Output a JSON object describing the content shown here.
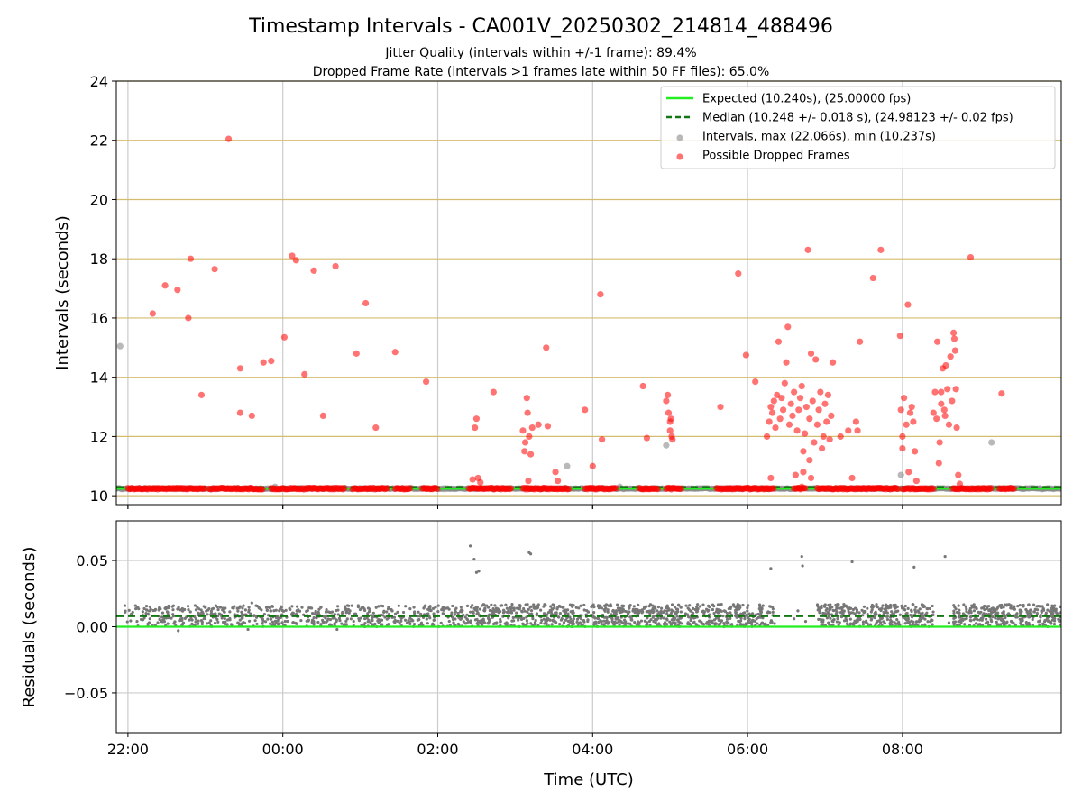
{
  "chart_data": [
    {
      "type": "scatter",
      "title": "Timestamp Intervals - CA001V_20250302_214814_488496",
      "subtitles": [
        "Jitter Quality (intervals within +/-1 frame): 89.4%",
        "Dropped Frame Rate (intervals >1 frames late within 50 FF files): 65.0%"
      ],
      "xlabel": "",
      "ylabel": "Intervals (seconds)",
      "x_unit": "hours relative to 00:00 UTC",
      "xlim": [
        -2.15,
        10.05
      ],
      "ylim": [
        9.7,
        24
      ],
      "x_ticks": [
        -2,
        0,
        2,
        4,
        6,
        8
      ],
      "y_ticks": [
        10,
        12,
        14,
        16,
        18,
        20,
        22,
        24
      ],
      "y_tick_labels": [
        "10",
        "12",
        "14",
        "16",
        "18",
        "20",
        "22",
        "24"
      ],
      "grid": "both",
      "legend_position": "top-right",
      "colors": {
        "expected": "#22ee22",
        "median": "#117711",
        "intervals": "#808080",
        "dropped": "#ff0000",
        "hgrid": "#d4bc6e",
        "vgrid": "#cccccc"
      },
      "series": [
        {
          "name": "Expected (10.240s), (25.00000 fps)",
          "kind": "hline",
          "y": 10.24,
          "style": "solid"
        },
        {
          "name": "Median (10.248 +/- 0.018 s), (24.98123 +/- 0.02 fps)",
          "kind": "hline",
          "y": 10.248,
          "style": "dashed"
        },
        {
          "name": "Intervals, max (22.066s), min (10.237s)",
          "kind": "scatter",
          "baseline_ranges": [
            [
              -2.25,
              10.05
            ]
          ],
          "baseline_y": 10.24,
          "points": [
            {
              "x": -2.1,
              "y": 15.05
            },
            {
              "x": -0.1,
              "y": 10.3
            },
            {
              "x": 3.67,
              "y": 11.0
            },
            {
              "x": 4.35,
              "y": 10.3
            },
            {
              "x": 4.95,
              "y": 11.7
            },
            {
              "x": 7.98,
              "y": 10.7
            },
            {
              "x": 9.15,
              "y": 11.8
            }
          ]
        },
        {
          "name": "Possible Dropped Frames",
          "kind": "scatter",
          "baseline_ranges": [
            [
              -2.0,
              -1.0
            ],
            [
              -0.95,
              -0.25
            ],
            [
              -0.15,
              0.8
            ],
            [
              0.9,
              1.35
            ],
            [
              1.45,
              1.65
            ],
            [
              1.8,
              2.0
            ],
            [
              2.4,
              2.95
            ],
            [
              3.1,
              3.7
            ],
            [
              3.9,
              4.3
            ],
            [
              4.6,
              4.85
            ],
            [
              4.95,
              5.15
            ],
            [
              5.6,
              6.35
            ],
            [
              6.6,
              6.75
            ],
            [
              6.9,
              7.95
            ],
            [
              8.0,
              8.4
            ],
            [
              8.65,
              9.15
            ],
            [
              9.25,
              9.45
            ]
          ],
          "baseline_y": 10.24,
          "points": [
            {
              "x": -1.68,
              "y": 16.15
            },
            {
              "x": -1.52,
              "y": 17.1
            },
            {
              "x": -1.36,
              "y": 16.95
            },
            {
              "x": -1.22,
              "y": 16.0
            },
            {
              "x": -1.19,
              "y": 18.0
            },
            {
              "x": -1.05,
              "y": 13.4
            },
            {
              "x": -0.88,
              "y": 17.65
            },
            {
              "x": -0.7,
              "y": 22.05
            },
            {
              "x": -0.55,
              "y": 14.3
            },
            {
              "x": -0.55,
              "y": 12.8
            },
            {
              "x": -0.4,
              "y": 12.7
            },
            {
              "x": -0.25,
              "y": 14.5
            },
            {
              "x": -0.15,
              "y": 14.55
            },
            {
              "x": 0.02,
              "y": 15.35
            },
            {
              "x": 0.12,
              "y": 18.1
            },
            {
              "x": 0.17,
              "y": 17.95
            },
            {
              "x": 0.28,
              "y": 14.1
            },
            {
              "x": 0.4,
              "y": 17.6
            },
            {
              "x": 0.52,
              "y": 12.7
            },
            {
              "x": 0.68,
              "y": 17.75
            },
            {
              "x": 0.95,
              "y": 14.8
            },
            {
              "x": 1.07,
              "y": 16.5
            },
            {
              "x": 1.2,
              "y": 12.3
            },
            {
              "x": 1.45,
              "y": 14.85
            },
            {
              "x": 1.85,
              "y": 13.85
            },
            {
              "x": 2.48,
              "y": 12.3
            },
            {
              "x": 2.5,
              "y": 12.6
            },
            {
              "x": 2.45,
              "y": 10.55
            },
            {
              "x": 2.52,
              "y": 10.6
            },
            {
              "x": 2.55,
              "y": 10.45
            },
            {
              "x": 2.72,
              "y": 13.5
            },
            {
              "x": 3.1,
              "y": 12.2
            },
            {
              "x": 3.12,
              "y": 11.5
            },
            {
              "x": 3.13,
              "y": 11.8
            },
            {
              "x": 3.15,
              "y": 13.3
            },
            {
              "x": 3.16,
              "y": 12.8
            },
            {
              "x": 3.18,
              "y": 12.0
            },
            {
              "x": 3.2,
              "y": 11.4
            },
            {
              "x": 3.22,
              "y": 12.3
            },
            {
              "x": 3.17,
              "y": 10.5
            },
            {
              "x": 3.3,
              "y": 12.4
            },
            {
              "x": 3.4,
              "y": 15.0
            },
            {
              "x": 3.42,
              "y": 12.35
            },
            {
              "x": 3.52,
              "y": 10.8
            },
            {
              "x": 3.55,
              "y": 10.5
            },
            {
              "x": 3.9,
              "y": 12.9
            },
            {
              "x": 4.0,
              "y": 11.0
            },
            {
              "x": 4.1,
              "y": 16.8
            },
            {
              "x": 4.12,
              "y": 11.9
            },
            {
              "x": 4.65,
              "y": 13.7
            },
            {
              "x": 4.7,
              "y": 11.95
            },
            {
              "x": 4.95,
              "y": 13.2
            },
            {
              "x": 4.97,
              "y": 13.4
            },
            {
              "x": 4.98,
              "y": 12.8
            },
            {
              "x": 5.0,
              "y": 12.5
            },
            {
              "x": 5.0,
              "y": 12.2
            },
            {
              "x": 5.02,
              "y": 12.0
            },
            {
              "x": 5.03,
              "y": 11.9
            },
            {
              "x": 5.01,
              "y": 12.6
            },
            {
              "x": 5.65,
              "y": 13.0
            },
            {
              "x": 5.88,
              "y": 17.5
            },
            {
              "x": 5.98,
              "y": 14.75
            },
            {
              "x": 6.1,
              "y": 13.85
            },
            {
              "x": 6.25,
              "y": 12.0
            },
            {
              "x": 6.28,
              "y": 12.5
            },
            {
              "x": 6.3,
              "y": 13.0
            },
            {
              "x": 6.32,
              "y": 12.8
            },
            {
              "x": 6.34,
              "y": 13.2
            },
            {
              "x": 6.36,
              "y": 12.3
            },
            {
              "x": 6.38,
              "y": 13.4
            },
            {
              "x": 6.4,
              "y": 15.2
            },
            {
              "x": 6.42,
              "y": 12.6
            },
            {
              "x": 6.44,
              "y": 13.3
            },
            {
              "x": 6.46,
              "y": 12.9
            },
            {
              "x": 6.48,
              "y": 13.8
            },
            {
              "x": 6.5,
              "y": 14.5
            },
            {
              "x": 6.52,
              "y": 15.7
            },
            {
              "x": 6.54,
              "y": 12.4
            },
            {
              "x": 6.56,
              "y": 13.1
            },
            {
              "x": 6.58,
              "y": 12.7
            },
            {
              "x": 6.6,
              "y": 13.5
            },
            {
              "x": 6.3,
              "y": 10.6
            },
            {
              "x": 6.62,
              "y": 10.7
            },
            {
              "x": 6.64,
              "y": 12.2
            },
            {
              "x": 6.66,
              "y": 12.9
            },
            {
              "x": 6.68,
              "y": 13.3
            },
            {
              "x": 6.7,
              "y": 13.7
            },
            {
              "x": 6.72,
              "y": 11.5
            },
            {
              "x": 6.74,
              "y": 12.1
            },
            {
              "x": 6.76,
              "y": 13.0
            },
            {
              "x": 6.78,
              "y": 18.3
            },
            {
              "x": 6.8,
              "y": 12.6
            },
            {
              "x": 6.82,
              "y": 14.8
            },
            {
              "x": 6.84,
              "y": 13.2
            },
            {
              "x": 6.86,
              "y": 11.8
            },
            {
              "x": 6.88,
              "y": 14.6
            },
            {
              "x": 6.9,
              "y": 12.4
            },
            {
              "x": 6.92,
              "y": 12.9
            },
            {
              "x": 6.94,
              "y": 13.5
            },
            {
              "x": 6.96,
              "y": 11.6
            },
            {
              "x": 6.98,
              "y": 12.0
            },
            {
              "x": 7.0,
              "y": 13.1
            },
            {
              "x": 7.02,
              "y": 12.5
            },
            {
              "x": 7.04,
              "y": 13.4
            },
            {
              "x": 7.06,
              "y": 11.9
            },
            {
              "x": 7.08,
              "y": 12.7
            },
            {
              "x": 7.1,
              "y": 14.5
            },
            {
              "x": 6.72,
              "y": 10.8
            },
            {
              "x": 6.8,
              "y": 11.2
            },
            {
              "x": 6.82,
              "y": 10.6
            },
            {
              "x": 6.7,
              "y": 10.3
            },
            {
              "x": 7.2,
              "y": 12.0
            },
            {
              "x": 7.3,
              "y": 12.2
            },
            {
              "x": 7.35,
              "y": 10.6
            },
            {
              "x": 7.4,
              "y": 12.5
            },
            {
              "x": 7.42,
              "y": 12.2
            },
            {
              "x": 7.45,
              "y": 15.2
            },
            {
              "x": 7.62,
              "y": 17.35
            },
            {
              "x": 7.72,
              "y": 18.3
            },
            {
              "x": 7.97,
              "y": 15.4
            },
            {
              "x": 7.98,
              "y": 12.9
            },
            {
              "x": 8.0,
              "y": 12.0
            },
            {
              "x": 8.0,
              "y": 11.6
            },
            {
              "x": 8.02,
              "y": 13.3
            },
            {
              "x": 8.05,
              "y": 12.4
            },
            {
              "x": 8.07,
              "y": 16.45
            },
            {
              "x": 8.08,
              "y": 10.8
            },
            {
              "x": 8.1,
              "y": 12.8
            },
            {
              "x": 8.12,
              "y": 13.0
            },
            {
              "x": 8.14,
              "y": 12.5
            },
            {
              "x": 8.16,
              "y": 11.5
            },
            {
              "x": 8.18,
              "y": 10.5
            },
            {
              "x": 8.4,
              "y": 12.8
            },
            {
              "x": 8.42,
              "y": 13.5
            },
            {
              "x": 8.44,
              "y": 12.6
            },
            {
              "x": 8.45,
              "y": 15.2
            },
            {
              "x": 8.47,
              "y": 11.1
            },
            {
              "x": 8.48,
              "y": 11.8
            },
            {
              "x": 8.5,
              "y": 13.1
            },
            {
              "x": 8.52,
              "y": 14.3
            },
            {
              "x": 8.54,
              "y": 12.9
            },
            {
              "x": 8.56,
              "y": 14.4
            },
            {
              "x": 8.58,
              "y": 13.6
            },
            {
              "x": 8.6,
              "y": 12.4
            },
            {
              "x": 8.62,
              "y": 14.7
            },
            {
              "x": 8.64,
              "y": 13.2
            },
            {
              "x": 8.66,
              "y": 15.5
            },
            {
              "x": 8.67,
              "y": 15.3
            },
            {
              "x": 8.68,
              "y": 14.9
            },
            {
              "x": 8.69,
              "y": 13.6
            },
            {
              "x": 8.7,
              "y": 12.3
            },
            {
              "x": 8.72,
              "y": 10.7
            },
            {
              "x": 8.74,
              "y": 10.4
            },
            {
              "x": 8.5,
              "y": 13.5
            },
            {
              "x": 8.55,
              "y": 12.7
            },
            {
              "x": 8.88,
              "y": 18.05
            },
            {
              "x": 9.28,
              "y": 13.45
            }
          ]
        }
      ]
    },
    {
      "type": "scatter",
      "xlabel": "Time (UTC)",
      "ylabel": "Residuals (seconds)",
      "xlim": [
        -2.15,
        10.05
      ],
      "ylim": [
        -0.08,
        0.08
      ],
      "x_ticks": [
        -2,
        0,
        2,
        4,
        6,
        8
      ],
      "x_tick_labels": [
        "22:00",
        "00:00",
        "02:00",
        "04:00",
        "06:00",
        "08:00"
      ],
      "y_ticks": [
        -0.05,
        0.0,
        0.05
      ],
      "y_tick_labels": [
        "−0.05",
        "0.00",
        "0.05"
      ],
      "grid": "both",
      "series": [
        {
          "kind": "hline",
          "y": 0.0,
          "style": "solid"
        },
        {
          "kind": "hline",
          "y": 0.008,
          "style": "dashed"
        },
        {
          "kind": "scatter",
          "bands": [
            {
              "x0": -2.05,
              "x1": 2.4,
              "ymin": 0.0,
              "ymax": 0.016
            },
            {
              "x0": 2.42,
              "x1": 5.15,
              "ymin": 0.0,
              "ymax": 0.017
            },
            {
              "x0": 5.2,
              "x1": 6.35,
              "ymin": 0.0,
              "ymax": 0.017
            },
            {
              "x0": 6.9,
              "x1": 8.4,
              "ymin": 0.0,
              "ymax": 0.017
            },
            {
              "x0": 8.65,
              "x1": 10.05,
              "ymin": 0.0,
              "ymax": 0.017
            }
          ],
          "points": [
            {
              "x": -2.2,
              "y": 0.02
            },
            {
              "x": -1.35,
              "y": -0.003
            },
            {
              "x": -0.45,
              "y": -0.002
            },
            {
              "x": -0.4,
              "y": 0.018
            },
            {
              "x": 0.7,
              "y": -0.002
            },
            {
              "x": 2.42,
              "y": 0.061
            },
            {
              "x": 2.47,
              "y": 0.051
            },
            {
              "x": 2.5,
              "y": 0.041
            },
            {
              "x": 2.53,
              "y": 0.042
            },
            {
              "x": 3.18,
              "y": 0.056
            },
            {
              "x": 3.2,
              "y": 0.055
            },
            {
              "x": 6.3,
              "y": 0.044
            },
            {
              "x": 6.7,
              "y": 0.053
            },
            {
              "x": 6.71,
              "y": 0.046
            },
            {
              "x": 7.35,
              "y": 0.049
            },
            {
              "x": 8.15,
              "y": 0.045
            },
            {
              "x": 8.55,
              "y": 0.053
            },
            {
              "x": 6.6,
              "y": 0.006
            },
            {
              "x": 6.65,
              "y": 0.012
            },
            {
              "x": 6.75,
              "y": 0.004
            },
            {
              "x": 8.6,
              "y": 0.003
            }
          ]
        }
      ]
    }
  ]
}
